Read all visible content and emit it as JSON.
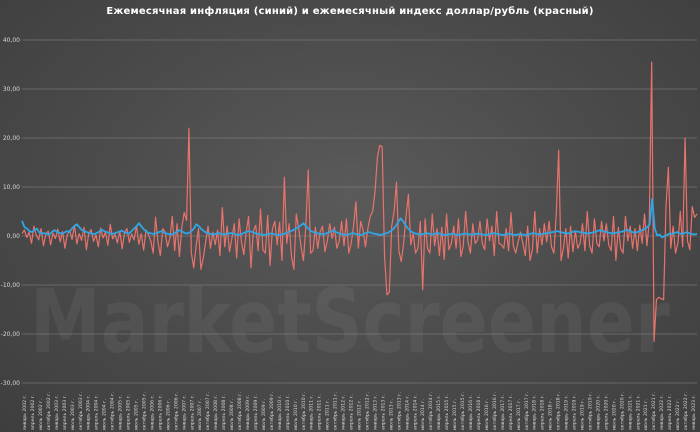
{
  "chart_data": {
    "type": "line",
    "title": "Ежемесячная инфляция (синий) и ежемесячный индекс доллар/рубль (красный)",
    "watermark": "MarketScreener",
    "ylim": [
      -30,
      40
    ],
    "yticks": [
      "40,00",
      "30,00",
      "20,00",
      "10,00",
      "0,00",
      "-10,00",
      "-20,00",
      "-30,00"
    ],
    "grid": true,
    "x_labels": [
      "январь 2002 г.",
      "апрель 2002 г.",
      "июль 2002 г.",
      "октябрь 2002 г.",
      "январь 2003 г.",
      "апрель 2003 г.",
      "июль 2003 г.",
      "октябрь 2003 г.",
      "январь 2004 г.",
      "апрель 2004 г.",
      "июль 2004 г.",
      "октябрь 2004 г.",
      "январь 2005 г.",
      "апрель 2005 г.",
      "июль 2005 г.",
      "октябрь 2005 г.",
      "январь 2006 г.",
      "апрель 2006 г.",
      "июль 2006 г.",
      "октябрь 2006 г.",
      "январь 2007 г.",
      "апрель 2007 г.",
      "июль 2007 г.",
      "октябрь 2007 г.",
      "январь 2008 г.",
      "апрель 2008 г.",
      "июль 2008 г.",
      "октябрь 2008 г.",
      "январь 2009 г.",
      "апрель 2009 г.",
      "июль 2009 г.",
      "октябрь 2009 г.",
      "январь 2010 г.",
      "апрель 2010 г.",
      "июль 2010 г.",
      "октябрь 2010 г.",
      "январь 2011 г.",
      "апрель 2011 г.",
      "июль 2011 г.",
      "октябрь 2011 г.",
      "январь 2012 г.",
      "апрель 2012 г.",
      "июль 2012 г.",
      "октябрь 2012 г.",
      "январь 2013 г.",
      "апрель 2013 г.",
      "июль 2013 г.",
      "октябрь 2013 г.",
      "январь 2014 г.",
      "апрель 2014 г.",
      "июль 2014 г.",
      "октябрь 2014 г.",
      "январь 2015 г.",
      "апрель 2015 г.",
      "июль 2015 г.",
      "октябрь 2015 г.",
      "январь 2016 г.",
      "апрель 2016 г.",
      "июль 2016 г.",
      "октябрь 2016 г.",
      "январь 2017 г.",
      "апрель 2017 г.",
      "июль 2017 г.",
      "октябрь 2017 г.",
      "январь 2018 г.",
      "апрель 2018 г.",
      "июль 2018 г.",
      "октябрь 2018 г.",
      "январь 2019 г.",
      "апрель 2019 г.",
      "июль 2019 г.",
      "октябрь 2019 г.",
      "январь 2020 г.",
      "апрель 2020 г.",
      "июль 2020 г.",
      "октябрь 2020 г.",
      "январь 2021 г.",
      "апрель 2021 г.",
      "июль 2021 г.",
      "октябрь 2021 г.",
      "январь 2022 г.",
      "апрель 2022 г.",
      "июль 2022 г.",
      "октябрь 2022 г.",
      "январь 2023 г."
    ],
    "series": [
      {
        "color": "#e8736c",
        "values": [
          0.5,
          1.2,
          -0.3,
          0.8,
          -1.5,
          2.0,
          0.2,
          -0.8,
          1.5,
          -2.0,
          0.4,
          1.0,
          -1.8,
          0.6,
          -0.5,
          1.4,
          -1.2,
          0.9,
          -2.5,
          0.3,
          1.1,
          -0.7,
          2.2,
          -1.6,
          0.5,
          -0.9,
          1.8,
          -2.8,
          0.6,
          1.3,
          -1.1,
          0.2,
          -2.2,
          1.6,
          -0.4,
          0.8,
          -1.9,
          2.4,
          -0.6,
          0.3,
          -1.4,
          1.0,
          -2.6,
          0.7,
          1.5,
          -1.3,
          0.4,
          -0.8,
          2.1,
          -1.7,
          0.5,
          -2.9,
          1.2,
          0.3,
          -1.0,
          -3.5,
          3.8,
          -1.2,
          -4.0,
          1.5,
          0.8,
          -2.2,
          -0.5,
          4.0,
          -3.0,
          2.5,
          -4.2,
          1.8,
          4.8,
          3.2,
          22.0,
          -3.5,
          -6.5,
          -2.0,
          1.5,
          -6.8,
          -4.5,
          -1.2,
          2.0,
          -2.5,
          0.8,
          -1.8,
          1.2,
          -4.0,
          5.8,
          -2.2,
          2.0,
          -3.2,
          -0.5,
          2.5,
          -4.5,
          3.5,
          -1.2,
          -3.8,
          0.8,
          4.0,
          -6.5,
          1.0,
          2.2,
          -3.0,
          5.5,
          -2.8,
          -3.5,
          4.2,
          -6.0,
          1.5,
          3.0,
          -1.8,
          2.8,
          -5.0,
          12.0,
          -1.5,
          2.5,
          -4.2,
          -6.8,
          4.5,
          1.5,
          -2.2,
          -5.0,
          2.0,
          13.5,
          -3.5,
          -3.0,
          1.8,
          -2.5,
          0.8,
          2.0,
          -3.2,
          -1.0,
          2.5,
          -0.5,
          1.8,
          -2.5,
          -1.0,
          3.0,
          -2.0,
          3.5,
          -3.5,
          -1.5,
          2.0,
          7.0,
          -2.5,
          3.0,
          1.2,
          -2.2,
          1.5,
          4.0,
          5.0,
          9.0,
          16.0,
          18.5,
          18.2,
          -4.0,
          -12.0,
          -11.5,
          2.0,
          5.0,
          11.0,
          -3.0,
          -5.2,
          -1.5,
          4.0,
          8.5,
          -1.8,
          0.5,
          -3.5,
          -2.5,
          3.0,
          -11.0,
          3.5,
          -2.5,
          -3.5,
          4.5,
          -2.0,
          1.5,
          -4.0,
          1.8,
          -4.8,
          4.5,
          -2.8,
          -1.5,
          2.0,
          -2.5,
          3.5,
          -4.2,
          -2.0,
          5.0,
          -1.2,
          -3.5,
          2.5,
          -1.5,
          -0.8,
          3.0,
          -1.5,
          -2.8,
          3.5,
          -1.0,
          2.0,
          -4.0,
          5.0,
          -1.5,
          -1.8,
          -2.5,
          1.5,
          -3.0,
          4.8,
          -2.0,
          -3.5,
          -1.2,
          0.8,
          -1.5,
          -4.0,
          2.0,
          -5.0,
          -2.8,
          5.0,
          -3.5,
          1.5,
          -1.8,
          2.5,
          -1.2,
          3.0,
          -2.2,
          -3.5,
          4.5,
          17.5,
          -5.0,
          -2.5,
          1.5,
          -4.5,
          2.0,
          -3.2,
          1.0,
          -2.5,
          -1.5,
          2.5,
          -3.0,
          5.0,
          -2.0,
          -3.5,
          3.5,
          -1.5,
          -2.2,
          3.0,
          -1.0,
          2.5,
          -1.8,
          -3.0,
          4.0,
          -5.0,
          1.8,
          -2.5,
          -3.5,
          4.0,
          -1.0,
          2.0,
          -2.5,
          1.5,
          -3.0,
          2.2,
          -1.5,
          4.5,
          -2.0,
          3.0,
          35.5,
          -21.5,
          -13.0,
          -12.5,
          -12.8,
          -13.0,
          6.0,
          14.0,
          -2.5,
          2.0,
          -3.5,
          -1.5,
          5.0,
          -2.2,
          20.0,
          -1.0,
          -2.8,
          6.0,
          3.8,
          4.5
        ]
      },
      {
        "color": "#2fa6e6",
        "values": [
          3.1,
          1.8,
          1.5,
          1.0,
          0.8,
          1.2,
          1.5,
          0.7,
          0.5,
          0.6,
          0.4,
          0.3,
          0.8,
          1.2,
          0.9,
          0.6,
          0.5,
          0.7,
          1.0,
          0.8,
          1.5,
          2.0,
          2.4,
          1.8,
          1.2,
          1.0,
          0.8,
          0.6,
          0.5,
          0.4,
          0.6,
          0.9,
          1.3,
          1.0,
          0.8,
          0.6,
          0.4,
          0.5,
          0.7,
          0.9,
          1.1,
          0.8,
          0.6,
          0.5,
          1.0,
          1.5,
          2.0,
          2.6,
          1.9,
          1.3,
          0.9,
          0.6,
          0.5,
          0.4,
          0.6,
          0.8,
          1.0,
          0.7,
          0.5,
          0.4,
          0.3,
          0.5,
          0.8,
          1.2,
          1.0,
          0.7,
          0.5,
          0.6,
          1.0,
          1.5,
          2.4,
          2.0,
          1.4,
          1.0,
          0.7,
          0.5,
          0.4,
          0.3,
          0.5,
          0.6,
          0.4,
          0.3,
          0.4,
          0.5,
          0.6,
          0.5,
          0.3,
          0.2,
          0.4,
          0.6,
          0.8,
          1.0,
          0.9,
          0.7,
          0.5,
          0.4,
          0.3,
          0.2,
          0.3,
          0.4,
          0.5,
          0.4,
          0.3,
          0.2,
          0.3,
          0.4,
          0.6,
          0.8,
          1.0,
          1.2,
          1.5,
          1.8,
          2.2,
          2.6,
          2.0,
          1.5,
          1.0,
          0.8,
          0.6,
          0.5,
          0.4,
          0.3,
          0.5,
          0.7,
          0.9,
          1.2,
          0.8,
          0.6,
          0.4,
          0.3,
          0.2,
          0.3,
          0.5,
          0.6,
          0.4,
          0.3,
          0.2,
          0.4,
          0.6,
          0.8,
          0.7,
          0.5,
          0.4,
          0.3,
          0.2,
          0.4,
          0.5,
          0.7,
          1.0,
          1.4,
          2.0,
          2.8,
          3.6,
          3.0,
          2.2,
          1.5,
          1.0,
          0.7,
          0.5,
          0.4,
          0.3,
          0.4,
          0.6,
          0.5,
          0.4,
          0.3,
          0.5,
          0.6,
          0.4,
          0.3,
          0.2,
          0.3,
          0.4,
          0.5,
          0.3,
          0.2,
          0.3,
          0.4,
          0.5,
          0.4,
          0.3,
          0.3,
          0.4,
          0.5,
          0.4,
          0.3,
          0.2,
          0.3,
          0.4,
          0.6,
          0.5,
          0.4,
          0.3,
          0.2,
          0.3,
          0.5,
          0.4,
          0.3,
          0.2,
          0.3,
          0.4,
          0.3,
          0.2,
          0.3,
          0.4,
          0.6,
          0.5,
          0.4,
          0.3,
          0.4,
          0.5,
          0.6,
          0.7,
          0.8,
          0.9,
          1.0,
          0.8,
          0.7,
          0.6,
          0.5,
          0.6,
          0.8,
          1.0,
          0.9,
          0.8,
          0.7,
          0.6,
          0.5,
          0.6,
          0.7,
          0.8,
          1.0,
          1.2,
          1.0,
          0.9,
          0.8,
          0.6,
          0.5,
          0.6,
          0.7,
          0.8,
          0.9,
          1.1,
          1.3,
          1.0,
          0.8,
          0.7,
          0.8,
          1.0,
          1.2,
          1.4,
          1.8,
          2.4,
          7.6,
          1.6,
          0.1,
          0.3,
          -0.3,
          0.0,
          0.2,
          0.5,
          0.4,
          0.6,
          0.8,
          0.5,
          0.4,
          0.6,
          0.8,
          0.5,
          0.4,
          0.3,
          0.5
        ]
      }
    ]
  }
}
